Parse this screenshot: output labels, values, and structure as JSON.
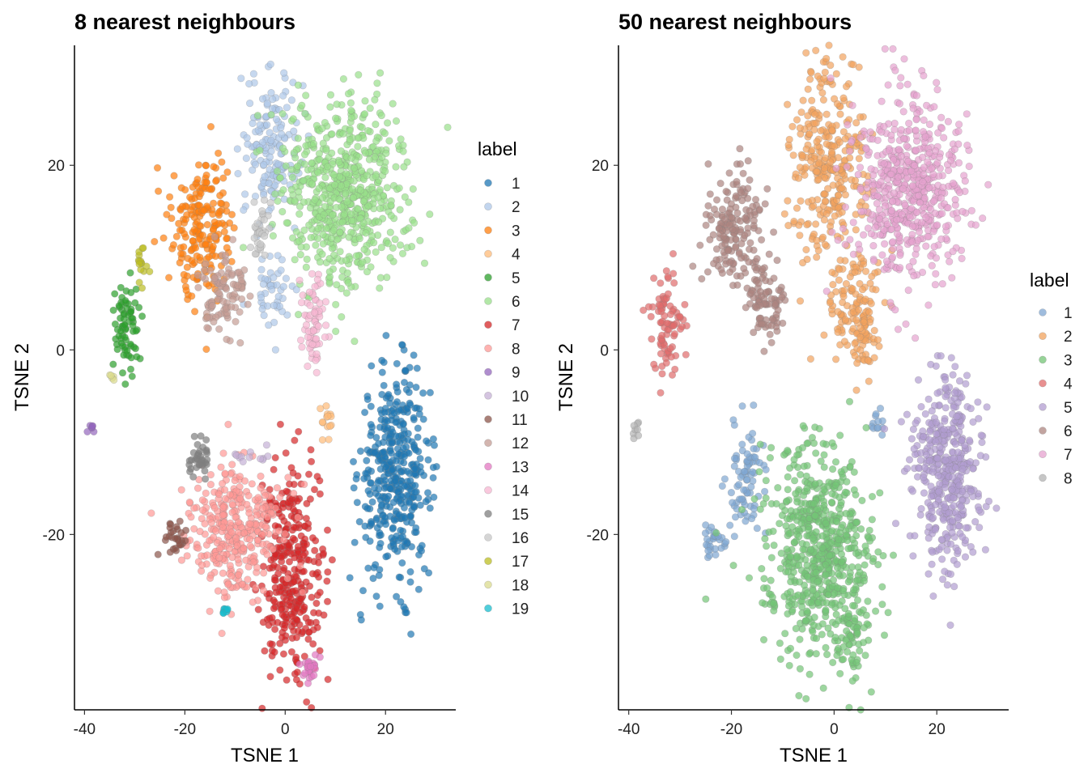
{
  "chart_data": [
    {
      "type": "scatter",
      "title": "8 nearest neighbours",
      "xlabel": "TSNE 1",
      "ylabel": "TSNE 2",
      "xlim": [
        -42,
        34
      ],
      "ylim": [
        -39,
        33
      ],
      "xticks": [
        -40,
        -20,
        0,
        20
      ],
      "yticks": [
        -20,
        0,
        20
      ],
      "grid": false,
      "legend": {
        "title": "label",
        "placement": "right"
      },
      "series": [
        {
          "name": "1",
          "color": "#1f77b4",
          "clusters": [
            {
              "cx": 22,
              "cy": -13.5,
              "sx": 3.5,
              "sy": 5.5,
              "n": 420
            }
          ]
        },
        {
          "name": "2",
          "color": "#aec7e8",
          "clusters": [
            {
              "cx": -3,
              "cy": 22,
              "sx": 3.0,
              "sy": 4.0,
              "n": 160
            },
            {
              "cx": -2,
              "cy": 6,
              "sx": 2.5,
              "sy": 2.0,
              "n": 45
            }
          ]
        },
        {
          "name": "3",
          "color": "#ff7f0e",
          "clusters": [
            {
              "cx": -16.5,
              "cy": 13.5,
              "sx": 3.0,
              "sy": 4.0,
              "n": 200
            }
          ]
        },
        {
          "name": "4",
          "color": "#ffbb78",
          "clusters": [
            {
              "cx": 8.5,
              "cy": -8,
              "sx": 0.6,
              "sy": 1.0,
              "n": 14
            }
          ]
        },
        {
          "name": "5",
          "color": "#2ca02c",
          "clusters": [
            {
              "cx": -31.5,
              "cy": 3,
              "sx": 1.2,
              "sy": 2.8,
              "n": 75
            }
          ]
        },
        {
          "name": "6",
          "color": "#98df8a",
          "clusters": [
            {
              "cx": 12,
              "cy": 17,
              "sx": 6.5,
              "sy": 5.0,
              "n": 620
            }
          ]
        },
        {
          "name": "7",
          "color": "#d62728",
          "clusters": [
            {
              "cx": 1,
              "cy": -24,
              "sx": 3.0,
              "sy": 5.5,
              "n": 330
            }
          ]
        },
        {
          "name": "8",
          "color": "#ff9896",
          "clusters": [
            {
              "cx": -10,
              "cy": -19.5,
              "sx": 4.5,
              "sy": 3.5,
              "n": 330
            }
          ]
        },
        {
          "name": "9",
          "color": "#9467bd",
          "clusters": [
            {
              "cx": -38.5,
              "cy": -8.5,
              "sx": 0.4,
              "sy": 0.4,
              "n": 7
            }
          ]
        },
        {
          "name": "10",
          "color": "#c5b0d5",
          "clusters": [
            {
              "cx": -7,
              "cy": -11.5,
              "sx": 2.5,
              "sy": 0.5,
              "n": 12
            }
          ]
        },
        {
          "name": "11",
          "color": "#8c564b",
          "clusters": [
            {
              "cx": -22,
              "cy": -20.5,
              "sx": 1.2,
              "sy": 1.2,
              "n": 30
            }
          ]
        },
        {
          "name": "12",
          "color": "#c49c94",
          "clusters": [
            {
              "cx": -12.5,
              "cy": 6,
              "sx": 2.3,
              "sy": 2.0,
              "n": 100
            }
          ]
        },
        {
          "name": "13",
          "color": "#e377c2",
          "clusters": [
            {
              "cx": 5,
              "cy": -34.5,
              "sx": 0.8,
              "sy": 0.8,
              "n": 30
            }
          ]
        },
        {
          "name": "14",
          "color": "#f7b6d2",
          "clusters": [
            {
              "cx": 5.5,
              "cy": 3,
              "sx": 1.3,
              "sy": 2.3,
              "n": 70
            }
          ]
        },
        {
          "name": "15",
          "color": "#7f7f7f",
          "clusters": [
            {
              "cx": -17,
              "cy": -11.5,
              "sx": 0.9,
              "sy": 1.4,
              "n": 35
            }
          ]
        },
        {
          "name": "16",
          "color": "#c7c7c7",
          "clusters": [
            {
              "cx": -5,
              "cy": 12.5,
              "sx": 1.0,
              "sy": 1.5,
              "n": 35
            }
          ]
        },
        {
          "name": "17",
          "color": "#bcbd22",
          "clusters": [
            {
              "cx": -28.5,
              "cy": 9,
              "sx": 0.5,
              "sy": 1.3,
              "n": 16
            }
          ]
        },
        {
          "name": "18",
          "color": "#dbdb8d",
          "clusters": [
            {
              "cx": -34.5,
              "cy": -3,
              "sx": 0.3,
              "sy": 0.6,
              "n": 5
            }
          ]
        },
        {
          "name": "19",
          "color": "#17becf",
          "clusters": [
            {
              "cx": -12,
              "cy": -28,
              "sx": 0.4,
              "sy": 0.4,
              "n": 9
            }
          ]
        }
      ]
    },
    {
      "type": "scatter",
      "title": "50 nearest neighbours",
      "xlabel": "TSNE 1",
      "ylabel": "TSNE 2",
      "xlim": [
        -42,
        34
      ],
      "ylim": [
        -39,
        33
      ],
      "xticks": [
        -40,
        -20,
        0,
        20
      ],
      "yticks": [
        -20,
        0,
        20
      ],
      "grid": false,
      "legend": {
        "title": "label",
        "placement": "right"
      },
      "series": [
        {
          "name": "1",
          "color": "#7fa6d1",
          "clusters": [
            {
              "cx": -17,
              "cy": -14,
              "sx": 2.0,
              "sy": 3.0,
              "n": 80
            },
            {
              "cx": -23,
              "cy": -21,
              "sx": 1.5,
              "sy": 1.2,
              "n": 30
            },
            {
              "cx": 8.5,
              "cy": -8,
              "sx": 0.6,
              "sy": 0.8,
              "n": 12
            }
          ]
        },
        {
          "name": "2",
          "color": "#f2a35e",
          "clusters": [
            {
              "cx": -1,
              "cy": 20,
              "sx": 3.5,
              "sy": 5.5,
              "n": 300
            },
            {
              "cx": 4,
              "cy": 5,
              "sx": 3.0,
              "sy": 3.0,
              "n": 110
            },
            {
              "cx": 6,
              "cy": 1.5,
              "sx": 1.0,
              "sy": 2.0,
              "n": 40
            }
          ]
        },
        {
          "name": "3",
          "color": "#74c476",
          "clusters": [
            {
              "cx": -3,
              "cy": -22,
              "sx": 5.0,
              "sy": 5.5,
              "n": 620
            },
            {
              "cx": 4,
              "cy": -30,
              "sx": 1.5,
              "sy": 3.0,
              "n": 60
            },
            {
              "cx": -12,
              "cy": -27.5,
              "sx": 0.5,
              "sy": 0.6,
              "n": 9
            }
          ]
        },
        {
          "name": "4",
          "color": "#e06b6b",
          "clusters": [
            {
              "cx": -32.5,
              "cy": 3,
              "sx": 1.5,
              "sy": 3.0,
              "n": 85
            }
          ]
        },
        {
          "name": "5",
          "color": "#b19cd0",
          "clusters": [
            {
              "cx": 22,
              "cy": -13,
              "sx": 3.5,
              "sy": 5.5,
              "n": 420
            }
          ]
        },
        {
          "name": "6",
          "color": "#ad8580",
          "clusters": [
            {
              "cx": -19.5,
              "cy": 13,
              "sx": 2.8,
              "sy": 3.5,
              "n": 170
            },
            {
              "cx": -13.5,
              "cy": 5,
              "sx": 2.0,
              "sy": 2.0,
              "n": 80
            }
          ]
        },
        {
          "name": "7",
          "color": "#e5a2cf",
          "clusters": [
            {
              "cx": 14.5,
              "cy": 17,
              "sx": 5.5,
              "sy": 5.0,
              "n": 560
            }
          ]
        },
        {
          "name": "8",
          "color": "#b3b3b3",
          "clusters": [
            {
              "cx": -38.5,
              "cy": -8.5,
              "sx": 0.4,
              "sy": 0.5,
              "n": 8
            }
          ]
        }
      ]
    }
  ]
}
